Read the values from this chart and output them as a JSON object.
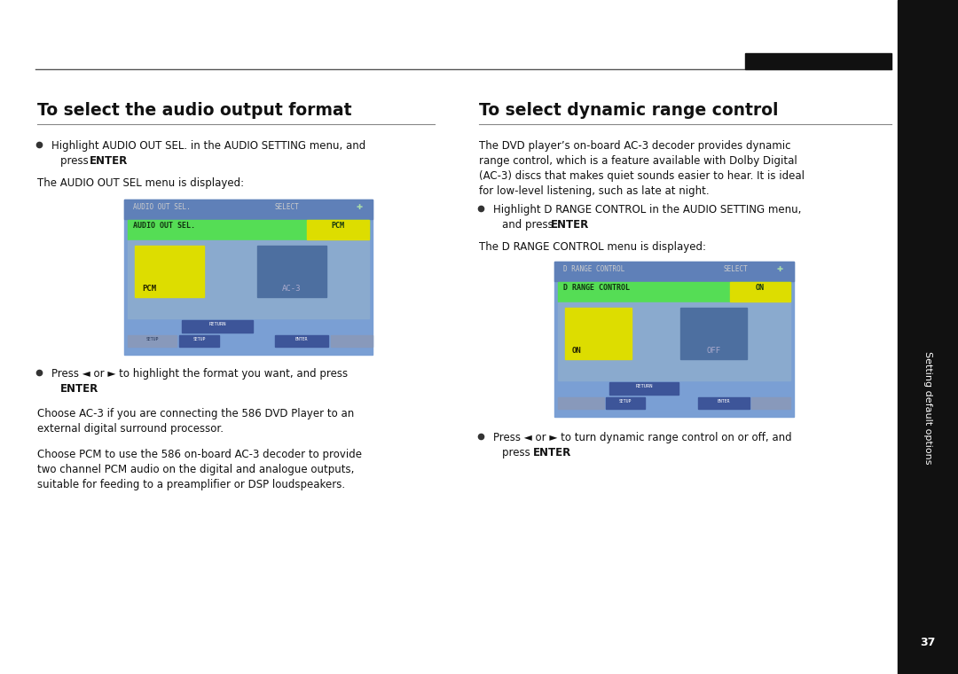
{
  "bg_color": "#ffffff",
  "sidebar_color": "#111111",
  "sidebar_text": "Setting default options",
  "sidebar_page": "37",
  "left_title": "To select the audio output format",
  "right_title": "To select dynamic range control",
  "title_color": "#111111",
  "title_underline_color": "#888888",
  "body_color": "#111111",
  "fs_body": 8.5,
  "fs_title": 13.5,
  "screen1_bg": "#7a9fd4",
  "screen1_hdr_bg": "#5f80b8",
  "screen1_bar": "#55dd55",
  "screen1_yellow": "#dddd00",
  "screen1_blue_box": "#4d6fa0",
  "screen1_light": "#8aaace",
  "screen2_bg": "#7a9fd4",
  "screen2_hdr_bg": "#5f80b8",
  "screen2_bar": "#55dd55",
  "screen2_yellow": "#dddd00",
  "screen2_blue_box": "#4d6fa0",
  "screen2_light": "#8aaace"
}
